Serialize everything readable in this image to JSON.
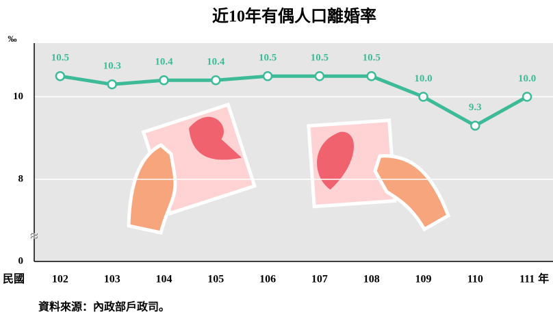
{
  "chart_data": {
    "type": "line",
    "title": "近10年有偶人口離婚率",
    "y_unit": "‰",
    "x_label_prefix": "民國",
    "x_label_suffix": "年",
    "categories": [
      "102",
      "103",
      "104",
      "105",
      "106",
      "107",
      "108",
      "109",
      "110",
      "111"
    ],
    "values": [
      10.5,
      10.3,
      10.4,
      10.4,
      10.5,
      10.5,
      10.5,
      10.0,
      9.3,
      10.0
    ],
    "value_labels": [
      "10.5",
      "10.3",
      "10.4",
      "10.4",
      "10.5",
      "10.5",
      "10.5",
      "10.0",
      "9.3",
      "10.0"
    ],
    "color": "#3dbb98",
    "ylim": [
      0,
      11.3
    ],
    "yticks": [
      0,
      8,
      10
    ],
    "axis_break": true,
    "grid": true,
    "source": "資料來源：內政部戶政司。"
  }
}
